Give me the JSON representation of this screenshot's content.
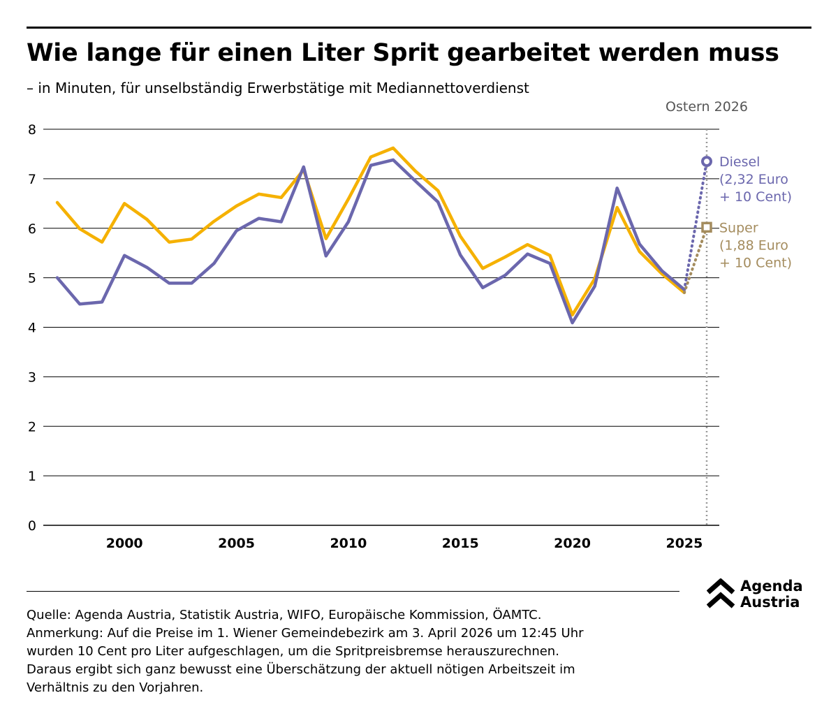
{
  "title": "Wie lange für einen Liter Sprit gearbeitet werden muss",
  "subtitle": "– in Minuten, für unselbständig Erwerbstätige mit Mediannettoverdienst",
  "colors": {
    "diesel": "#6b67ad",
    "super": "#f5b100",
    "diesel_label": "#6b67ad",
    "super_label": "#a48c5e",
    "grid": "#000000",
    "marker": "#999999",
    "marker_label": "#555555"
  },
  "chart_data": {
    "type": "line",
    "title": "Wie lange für einen Liter Sprit gearbeitet werden muss",
    "ylabel": "Minuten",
    "xlim": [
      1997,
      2026
    ],
    "ylim": [
      0,
      8
    ],
    "y_ticks": [
      "0",
      "1",
      "2",
      "3",
      "4",
      "5",
      "6",
      "7",
      "8"
    ],
    "x_ticks": [
      "2000",
      "2005",
      "2010",
      "2015",
      "2020",
      "2025"
    ],
    "x": [
      1997,
      1998,
      1999,
      2000,
      2001,
      2002,
      2003,
      2004,
      2005,
      2006,
      2007,
      2008,
      2009,
      2010,
      2011,
      2012,
      2013,
      2014,
      2015,
      2016,
      2017,
      2018,
      2019,
      2020,
      2021,
      2022,
      2023,
      2024,
      2025
    ],
    "series": [
      {
        "name": "Super",
        "values": [
          6.52,
          5.99,
          5.72,
          6.5,
          6.18,
          5.72,
          5.78,
          6.14,
          6.45,
          6.69,
          6.62,
          7.18,
          5.79,
          6.59,
          7.44,
          7.62,
          7.15,
          6.76,
          5.84,
          5.19,
          5.42,
          5.67,
          5.45,
          4.25,
          4.98,
          6.42,
          5.53,
          5.08,
          4.7
        ]
      },
      {
        "name": "Diesel",
        "values": [
          5.0,
          4.47,
          4.51,
          5.45,
          5.21,
          4.89,
          4.89,
          5.29,
          5.95,
          6.2,
          6.13,
          7.24,
          5.44,
          6.13,
          7.27,
          7.38,
          6.95,
          6.53,
          5.46,
          4.8,
          5.05,
          5.48,
          5.29,
          4.09,
          4.83,
          6.81,
          5.68,
          5.14,
          4.76
        ]
      }
    ],
    "projection": {
      "x": 2026,
      "label": "Ostern 2026",
      "points": [
        {
          "name": "Diesel",
          "value": 7.35,
          "label_lines": [
            "Diesel",
            "(2,32 Euro",
            "+ 10 Cent)"
          ]
        },
        {
          "name": "Super",
          "value": 6.02,
          "label_lines": [
            "Super",
            "(1,88 Euro",
            "+ 10 Cent)"
          ]
        }
      ]
    }
  },
  "footer": {
    "lines": [
      "Quelle: Agenda Austria, Statistik Austria, WIFO, Europäische Kommission, ÖAMTC.",
      "Anmerkung: Auf die Preise im 1. Wiener Gemeindebezirk am 3. April 2026 um 12:45 Uhr",
      "wurden 10 Cent pro Liter aufgeschlagen, um die Spritpreisbremse herauszurechnen.",
      "Daraus ergibt sich ganz bewusst eine Überschätzung der aktuell nötigen Arbeitszeit im",
      "Verhältnis zu den Vorjahren."
    ]
  },
  "logo": {
    "line1": "Agenda",
    "line2": "Austria"
  }
}
